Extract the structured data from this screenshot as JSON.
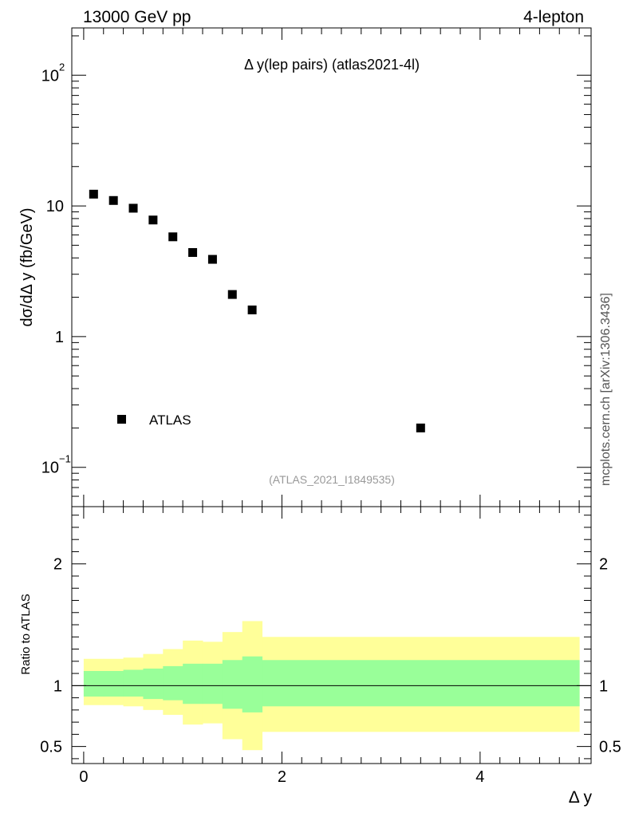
{
  "header": {
    "left_label": "13000 GeV pp",
    "right_label": "4-lepton",
    "side_label": "mcplots.cern.ch [arXiv:1306.3436]"
  },
  "chart_data": [
    {
      "panel": "main",
      "type": "scatter",
      "title": "Δ y(lep pairs) (atlas2021-4l)",
      "watermark": "(ATLAS_2021_I1849535)",
      "ylabel": "dσ/dΔ y (fb/GeV)",
      "yscale": "log",
      "ylim": [
        0.05,
        230
      ],
      "xlim": [
        -0.12,
        5.12
      ],
      "ytick_labels": [
        {
          "value": 100,
          "base": "10",
          "exp": "2"
        },
        {
          "value": 10,
          "base": "10",
          "exp": ""
        },
        {
          "value": 1,
          "base": "1",
          "exp": ""
        },
        {
          "value": 0.1,
          "base": "10",
          "exp": "−1"
        }
      ],
      "legend": {
        "position": "lower-left",
        "entries": [
          "ATLAS"
        ]
      },
      "series": [
        {
          "name": "ATLAS",
          "marker": "square",
          "color": "#000000",
          "x": [
            0.1,
            0.3,
            0.5,
            0.7,
            0.9,
            1.1,
            1.3,
            1.5,
            1.7,
            3.4
          ],
          "y": [
            12.3,
            11.0,
            9.6,
            7.8,
            5.8,
            4.4,
            3.9,
            2.1,
            1.6,
            0.2
          ]
        }
      ]
    },
    {
      "panel": "ratio",
      "type": "area",
      "ylabel": "Ratio to ATLAS",
      "xlabel": "Δ y",
      "ylim": [
        0.36,
        2.47
      ],
      "xlim": [
        -0.12,
        5.12
      ],
      "ytick_labels": [
        "0.5",
        "1",
        "2"
      ],
      "ytick_values": [
        0.5,
        1,
        2
      ],
      "xtick_labels": [
        "0",
        "2",
        "4"
      ],
      "xtick_values": [
        0,
        2,
        4
      ],
      "reference_line": 1,
      "bands": [
        {
          "color": "#ffff99",
          "bins": [
            {
              "x0": 0.0,
              "x1": 0.2,
              "lo": 0.84,
              "hi": 1.22
            },
            {
              "x0": 0.2,
              "x1": 0.4,
              "lo": 0.84,
              "hi": 1.22
            },
            {
              "x0": 0.4,
              "x1": 0.6,
              "lo": 0.83,
              "hi": 1.23
            },
            {
              "x0": 0.6,
              "x1": 0.8,
              "lo": 0.8,
              "hi": 1.26
            },
            {
              "x0": 0.8,
              "x1": 1.0,
              "lo": 0.76,
              "hi": 1.3
            },
            {
              "x0": 1.0,
              "x1": 1.2,
              "lo": 0.68,
              "hi": 1.37
            },
            {
              "x0": 1.2,
              "x1": 1.4,
              "lo": 0.69,
              "hi": 1.36
            },
            {
              "x0": 1.4,
              "x1": 1.6,
              "lo": 0.56,
              "hi": 1.44
            },
            {
              "x0": 1.6,
              "x1": 1.8,
              "lo": 0.47,
              "hi": 1.53
            },
            {
              "x0": 1.8,
              "x1": 5.0,
              "lo": 0.62,
              "hi": 1.4
            }
          ]
        },
        {
          "color": "#99ff99",
          "bins": [
            {
              "x0": 0.0,
              "x1": 0.2,
              "lo": 0.91,
              "hi": 1.12
            },
            {
              "x0": 0.2,
              "x1": 0.4,
              "lo": 0.91,
              "hi": 1.12
            },
            {
              "x0": 0.4,
              "x1": 0.6,
              "lo": 0.91,
              "hi": 1.13
            },
            {
              "x0": 0.6,
              "x1": 0.8,
              "lo": 0.89,
              "hi": 1.14
            },
            {
              "x0": 0.8,
              "x1": 1.0,
              "lo": 0.88,
              "hi": 1.16
            },
            {
              "x0": 1.0,
              "x1": 1.2,
              "lo": 0.85,
              "hi": 1.18
            },
            {
              "x0": 1.2,
              "x1": 1.4,
              "lo": 0.85,
              "hi": 1.18
            },
            {
              "x0": 1.4,
              "x1": 1.6,
              "lo": 0.81,
              "hi": 1.21
            },
            {
              "x0": 1.6,
              "x1": 1.8,
              "lo": 0.78,
              "hi": 1.24
            },
            {
              "x0": 1.8,
              "x1": 5.0,
              "lo": 0.83,
              "hi": 1.21
            }
          ]
        }
      ]
    }
  ]
}
